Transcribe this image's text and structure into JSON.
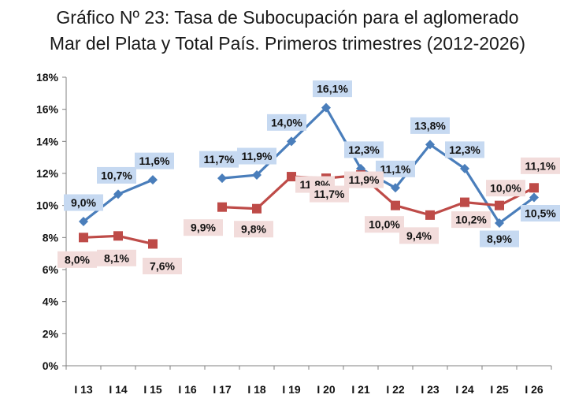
{
  "title_line1": "Gráfico Nº 23: Tasa de Subocupación para el aglomerado",
  "title_line2": "Mar del Plata y Total País. Primeros trimestres (2012-2026)",
  "chart_data": {
    "type": "line",
    "categories": [
      "I 13",
      "I 14",
      "I 15",
      "I 16",
      "I 17",
      "I 18",
      "I 19",
      "I 20",
      "I 21",
      "I 22",
      "I 23",
      "I 24",
      "I 25",
      "I 26"
    ],
    "y_ticks": [
      "0%",
      "2%",
      "4%",
      "6%",
      "8%",
      "10%",
      "12%",
      "14%",
      "16%",
      "18%"
    ],
    "ylim": [
      0,
      18
    ],
    "grid": false,
    "series": [
      {
        "color": "#4a7ebb",
        "label_bg": "#c6d9f1",
        "marker": "diamond",
        "values": [
          9.0,
          10.7,
          11.6,
          null,
          11.7,
          11.9,
          14.0,
          16.1,
          12.3,
          11.1,
          13.8,
          12.3,
          8.9,
          10.5
        ],
        "labels": [
          "9,0%",
          "10,7%",
          "11,6%",
          "",
          "11,7%",
          "11,9%",
          "14,0%",
          "16,1%",
          "12,3%",
          "11,1%",
          "13,8%",
          "12,3%",
          "8,9%",
          "10,5%"
        ]
      },
      {
        "color": "#be4b48",
        "label_bg": "#f2dcdb",
        "marker": "square",
        "values": [
          8.0,
          8.1,
          7.6,
          null,
          9.9,
          9.8,
          11.8,
          11.7,
          11.9,
          10.0,
          9.4,
          10.2,
          10.0,
          11.1
        ],
        "labels": [
          "8,0%",
          "8,1%",
          "7,6%",
          "",
          "9,9%",
          "9,8%",
          "11,8%",
          "11,7%",
          "11,9%",
          "10,0%",
          "9,4%",
          "10,2%",
          "10,0%",
          "11,1%"
        ]
      }
    ]
  }
}
